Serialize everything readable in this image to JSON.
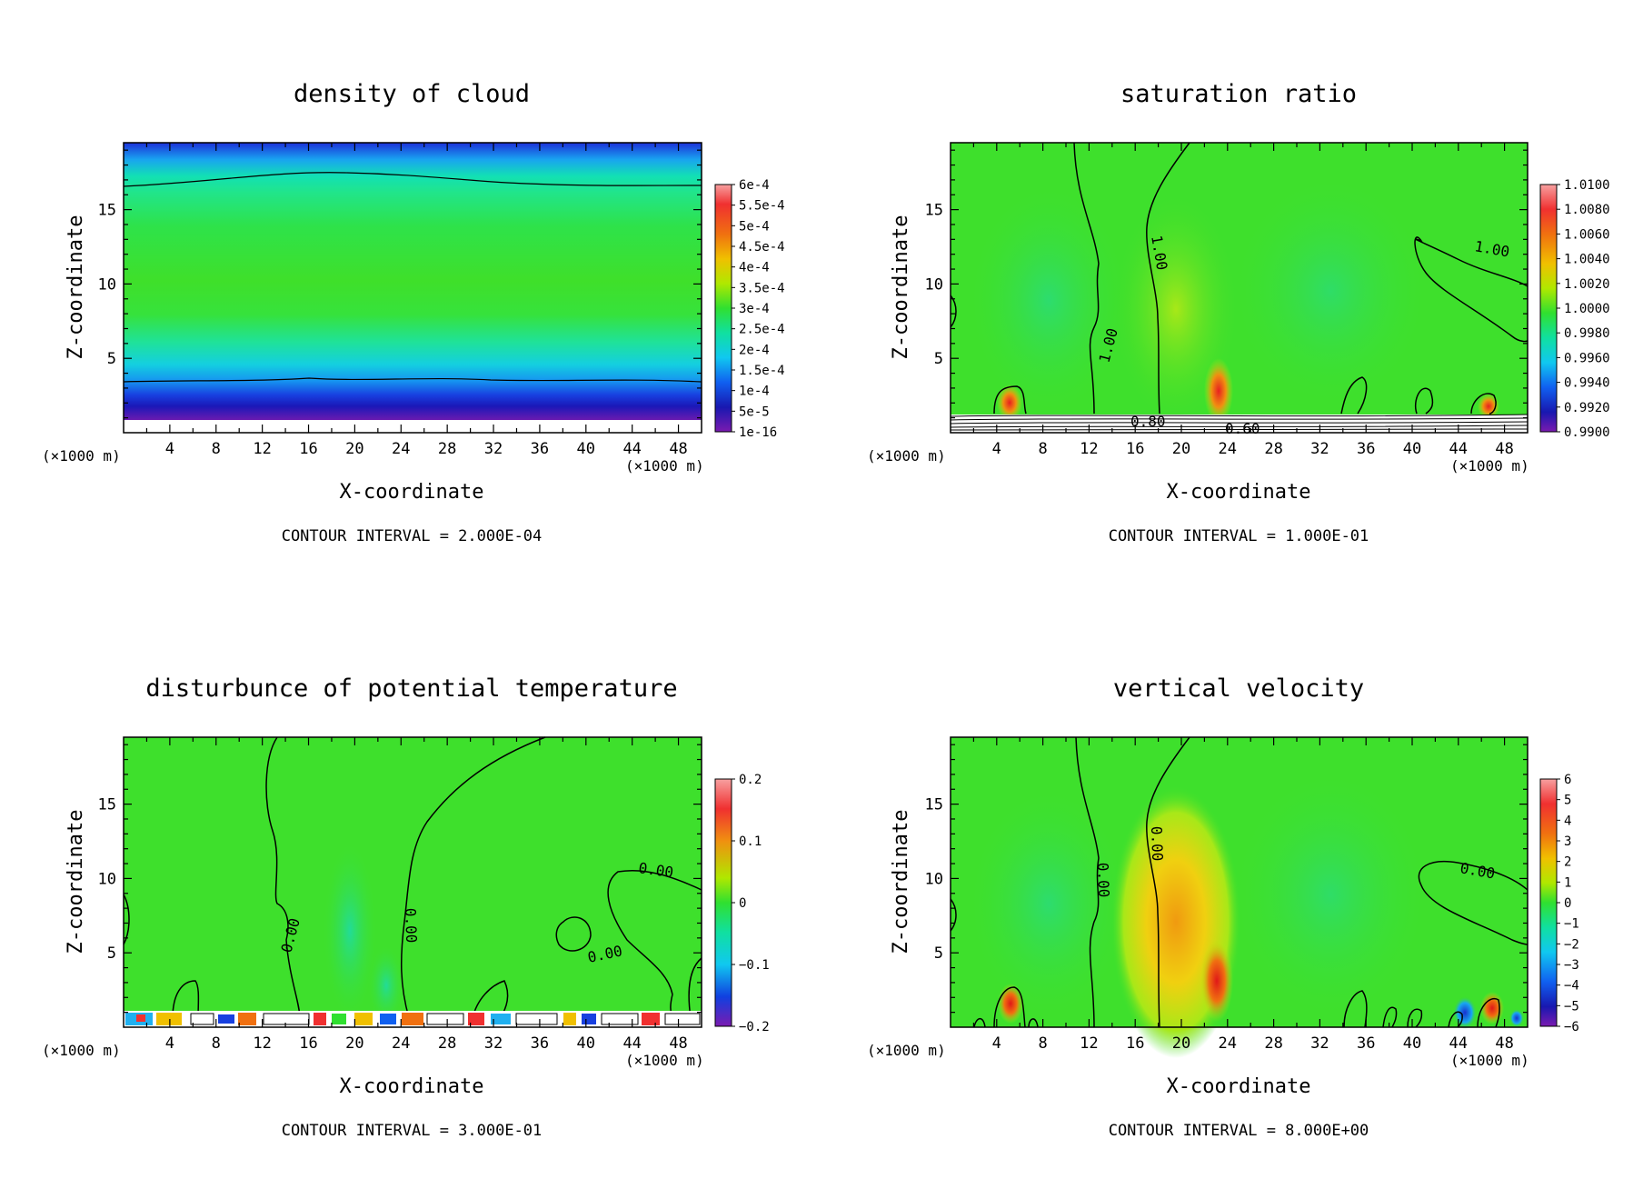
{
  "chart_data": [
    {
      "type": "heatmap",
      "title": "density of cloud",
      "xlabel": "X-coordinate",
      "ylabel": "Z-coordinate",
      "x_unit": "(×1000 m)",
      "xlim": [
        0,
        50
      ],
      "ylim": [
        0,
        19.5
      ],
      "xticks": [
        4,
        8,
        12,
        16,
        20,
        24,
        28,
        32,
        36,
        40,
        44,
        48
      ],
      "yticks": [
        5,
        10,
        15
      ],
      "colorbar": [
        "6e-4",
        "5.5e-4",
        "5e-4",
        "4.5e-4",
        "4e-4",
        "3.5e-4",
        "3e-4",
        "2.5e-4",
        "2e-4",
        "1.5e-4",
        "1e-4",
        "5e-5",
        "1e-16"
      ],
      "contour_interval": "CONTOUR INTERVAL = 2.000E-04",
      "contour_labels": []
    },
    {
      "type": "heatmap",
      "title": "saturation ratio",
      "xlabel": "X-coordinate",
      "ylabel": "Z-coordinate",
      "x_unit": "(×1000 m)",
      "xlim": [
        0,
        50
      ],
      "ylim": [
        0,
        19.5
      ],
      "xticks": [
        4,
        8,
        12,
        16,
        20,
        24,
        28,
        32,
        36,
        40,
        44,
        48
      ],
      "yticks": [
        5,
        10,
        15
      ],
      "colorbar": [
        "1.0100",
        "1.0080",
        "1.0060",
        "1.0040",
        "1.0020",
        "1.0000",
        "0.9980",
        "0.9960",
        "0.9940",
        "0.9920",
        "0.9900"
      ],
      "contour_interval": "CONTOUR INTERVAL = 1.000E-01",
      "contour_labels": [
        "1.00",
        "1.00",
        "1.00",
        "0.80",
        "0.60"
      ]
    },
    {
      "type": "heatmap",
      "title": "disturbunce of potential temperature",
      "xlabel": "X-coordinate",
      "ylabel": "Z-coordinate",
      "x_unit": "(×1000 m)",
      "xlim": [
        0,
        50
      ],
      "ylim": [
        0,
        19.5
      ],
      "xticks": [
        4,
        8,
        12,
        16,
        20,
        24,
        28,
        32,
        36,
        40,
        44,
        48
      ],
      "yticks": [
        5,
        10,
        15
      ],
      "colorbar": [
        "0.2",
        "0.1",
        "0",
        "−0.1",
        "−0.2"
      ],
      "contour_interval": "CONTOUR INTERVAL = 3.000E-01",
      "contour_labels": [
        "0.00",
        "0.00",
        "0.00",
        "0.00"
      ]
    },
    {
      "type": "heatmap",
      "title": "vertical velocity",
      "xlabel": "X-coordinate",
      "ylabel": "Z-coordinate",
      "x_unit": "(×1000 m)",
      "xlim": [
        0,
        50
      ],
      "ylim": [
        0,
        19.5
      ],
      "xticks": [
        4,
        8,
        12,
        16,
        20,
        24,
        28,
        32,
        36,
        40,
        44,
        48
      ],
      "yticks": [
        5,
        10,
        15
      ],
      "colorbar": [
        "6",
        "5",
        "4",
        "3",
        "2",
        "1",
        "0",
        "−1",
        "−2",
        "−3",
        "−4",
        "−5",
        "−6"
      ],
      "contour_interval": "CONTOUR INTERVAL = 8.000E+00",
      "contour_labels": [
        "0.00",
        "0.00",
        "0.00"
      ]
    }
  ]
}
